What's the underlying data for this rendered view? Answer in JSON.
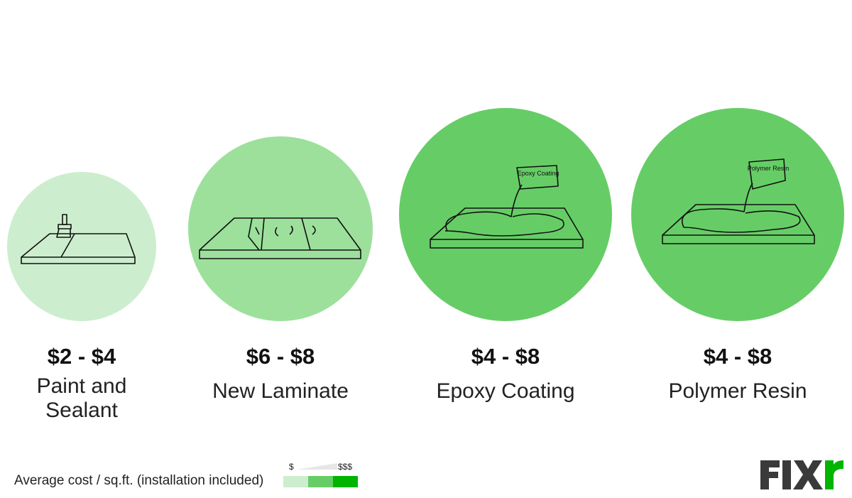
{
  "items": [
    {
      "price": "$2 - $4",
      "label": "Paint and Sealant",
      "color": "#cdeece"
    },
    {
      "price": "$6 - $8",
      "label": "New Laminate",
      "color": "#9ce09c"
    },
    {
      "price": "$4 - $8",
      "label": "Epoxy Coating",
      "color": "#66cd66",
      "bucket_label": "Epoxy Coating"
    },
    {
      "price": "$4 - $8",
      "label": "Polymer Resin",
      "color": "#66cd66",
      "bucket_label": "Polymer Resin"
    }
  ],
  "legend": {
    "text": "Average cost / sq.ft. (installation included)",
    "low": "$",
    "high": "$$$",
    "colors": [
      "#cdeece",
      "#66cd66",
      "#00b400"
    ]
  }
}
